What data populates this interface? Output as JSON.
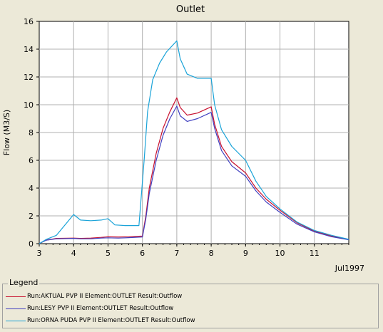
{
  "chart_data": {
    "type": "line",
    "title": "Outlet",
    "xlabel": "Jul1997",
    "ylabel": "Flow (M3/S)",
    "xlim": [
      3,
      12
    ],
    "ylim": [
      0,
      16
    ],
    "x_ticks": [
      3,
      4,
      5,
      6,
      7,
      8,
      9,
      10,
      11
    ],
    "y_ticks": [
      0,
      2,
      4,
      6,
      8,
      10,
      12,
      14,
      16
    ],
    "grid": true,
    "legend_position": "bottom",
    "legend_title": "Legend",
    "series": [
      {
        "name": "Run:AKTUAL PVP II Element:OUTLET Result:Outflow",
        "color": "#c8102e",
        "points": [
          [
            3,
            0.0
          ],
          [
            3.2,
            0.25
          ],
          [
            3.5,
            0.38
          ],
          [
            4,
            0.4
          ],
          [
            4.2,
            0.38
          ],
          [
            4.5,
            0.4
          ],
          [
            4.8,
            0.45
          ],
          [
            5,
            0.5
          ],
          [
            5.3,
            0.48
          ],
          [
            5.6,
            0.5
          ],
          [
            6,
            0.55
          ],
          [
            6.1,
            2.0
          ],
          [
            6.2,
            4.0
          ],
          [
            6.4,
            6.5
          ],
          [
            6.6,
            8.3
          ],
          [
            6.8,
            9.5
          ],
          [
            7,
            10.5
          ],
          [
            7.1,
            9.8
          ],
          [
            7.3,
            9.25
          ],
          [
            7.6,
            9.4
          ],
          [
            8,
            9.85
          ],
          [
            8.1,
            8.6
          ],
          [
            8.3,
            7.0
          ],
          [
            8.6,
            5.9
          ],
          [
            9,
            5.1
          ],
          [
            9.3,
            4.0
          ],
          [
            9.6,
            3.2
          ],
          [
            10,
            2.4
          ],
          [
            10.5,
            1.5
          ],
          [
            11,
            0.9
          ],
          [
            11.5,
            0.55
          ],
          [
            12,
            0.3
          ]
        ]
      },
      {
        "name": "Run:LESY PVP II Element:OUTLET Result:Outflow",
        "color": "#4040c0",
        "points": [
          [
            3,
            0.0
          ],
          [
            3.2,
            0.25
          ],
          [
            3.5,
            0.35
          ],
          [
            4,
            0.38
          ],
          [
            4.2,
            0.35
          ],
          [
            4.5,
            0.35
          ],
          [
            4.8,
            0.4
          ],
          [
            5,
            0.42
          ],
          [
            5.3,
            0.4
          ],
          [
            5.6,
            0.43
          ],
          [
            6,
            0.48
          ],
          [
            6.1,
            1.8
          ],
          [
            6.2,
            3.6
          ],
          [
            6.4,
            6.0
          ],
          [
            6.6,
            7.8
          ],
          [
            6.8,
            9.0
          ],
          [
            7,
            9.9
          ],
          [
            7.1,
            9.2
          ],
          [
            7.3,
            8.8
          ],
          [
            7.6,
            9.0
          ],
          [
            8,
            9.45
          ],
          [
            8.1,
            8.3
          ],
          [
            8.3,
            6.7
          ],
          [
            8.6,
            5.6
          ],
          [
            9,
            4.85
          ],
          [
            9.3,
            3.8
          ],
          [
            9.6,
            3.0
          ],
          [
            10,
            2.25
          ],
          [
            10.5,
            1.4
          ],
          [
            11,
            0.85
          ],
          [
            11.5,
            0.5
          ],
          [
            12,
            0.28
          ]
        ]
      },
      {
        "name": "Run:ORNA PUDA PVP II Element:OUTLET Result:Outflow",
        "color": "#1aa3d8",
        "points": [
          [
            3,
            0.0
          ],
          [
            3.2,
            0.3
          ],
          [
            3.5,
            0.6
          ],
          [
            3.8,
            1.5
          ],
          [
            4,
            2.1
          ],
          [
            4.2,
            1.7
          ],
          [
            4.5,
            1.65
          ],
          [
            4.8,
            1.7
          ],
          [
            5,
            1.8
          ],
          [
            5.2,
            1.35
          ],
          [
            5.5,
            1.3
          ],
          [
            5.9,
            1.3
          ],
          [
            6.05,
            6.0
          ],
          [
            6.15,
            9.5
          ],
          [
            6.3,
            11.8
          ],
          [
            6.5,
            13.0
          ],
          [
            6.7,
            13.8
          ],
          [
            7,
            14.6
          ],
          [
            7.1,
            13.3
          ],
          [
            7.3,
            12.2
          ],
          [
            7.6,
            11.9
          ],
          [
            8,
            11.9
          ],
          [
            8.1,
            10.0
          ],
          [
            8.3,
            8.2
          ],
          [
            8.6,
            7.0
          ],
          [
            9,
            6.0
          ],
          [
            9.3,
            4.5
          ],
          [
            9.6,
            3.4
          ],
          [
            10,
            2.5
          ],
          [
            10.5,
            1.55
          ],
          [
            11,
            0.95
          ],
          [
            11.5,
            0.6
          ],
          [
            12,
            0.32
          ]
        ]
      }
    ]
  }
}
